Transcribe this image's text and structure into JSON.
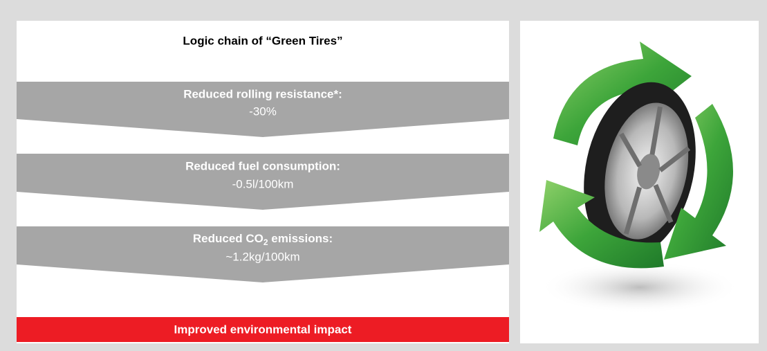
{
  "title": "Logic chain of “Green Tires”",
  "steps": [
    {
      "heading": "Reduced rolling resistance*:",
      "value": "-30%"
    },
    {
      "heading": "Reduced fuel consumption:",
      "value": "-0.5l/100km"
    },
    {
      "heading_parts": [
        "Reduced CO",
        "2",
        " emissions:"
      ],
      "value": "~1.2kg/100km"
    }
  ],
  "result": "Improved environmental impact"
}
